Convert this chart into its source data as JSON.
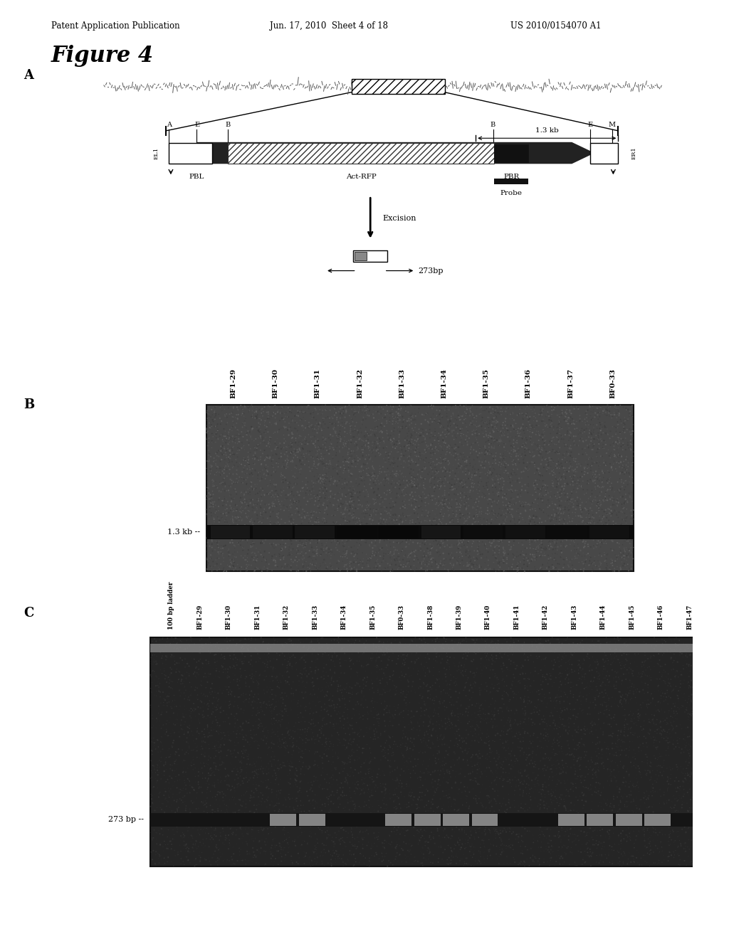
{
  "header_left": "Patent Application Publication",
  "header_mid": "Jun. 17, 2010  Sheet 4 of 18",
  "header_right": "US 2010/0154070 A1",
  "figure_title": "Figure 4",
  "panel_A_label": "A",
  "panel_B_label": "B",
  "panel_C_label": "C",
  "panel_B": {
    "lanes": [
      "BF1-29",
      "BF1-30",
      "BF1-31",
      "BF1-32",
      "BF1-33",
      "BF1-34",
      "BF1-35",
      "BF1-36",
      "BF1-37",
      "BF0-33"
    ],
    "marker_label": "1.3 kb --"
  },
  "panel_C": {
    "lanes": [
      "100 bp ladder",
      "BF1-29",
      "BF1-30",
      "BF1-31",
      "BF1-32",
      "BF1-33",
      "BF1-34",
      "BF1-35",
      "BF0-33",
      "BF1-38",
      "BF1-39",
      "BF1-40",
      "BF1-41",
      "BF1-42",
      "BF1-43",
      "BF1-44",
      "BF1-45",
      "BF1-46",
      "BF1-47"
    ],
    "marker_label": "273 bp --"
  }
}
